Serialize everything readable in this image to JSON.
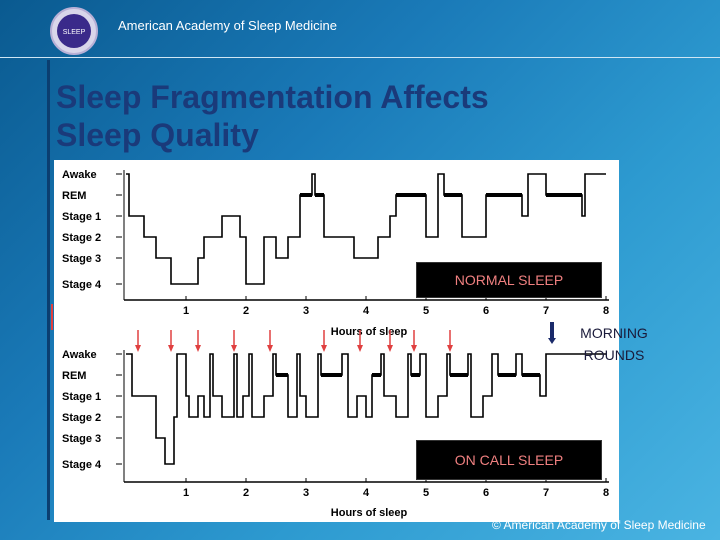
{
  "header": {
    "org_name": "American Academy of Sleep Medicine",
    "logo_text": "SLEEP"
  },
  "slide": {
    "title_line1": "Sleep Fragmentation Affects",
    "title_line2": "Sleep Quality"
  },
  "chart_data": [
    {
      "type": "line",
      "name": "NORMAL SLEEP",
      "stages": [
        "Awake",
        "REM",
        "Stage 1",
        "Stage 2",
        "Stage 3",
        "Stage 4"
      ],
      "x": [
        1,
        2,
        3,
        4,
        5,
        6,
        7,
        8
      ],
      "xlabel": "Hours of sleep",
      "xlim": [
        0,
        8
      ],
      "label": "NORMAL SLEEP",
      "hypnogram": [
        [
          0,
          "Awake"
        ],
        [
          0.05,
          "Stage 1"
        ],
        [
          0.3,
          "Stage 2"
        ],
        [
          0.5,
          "Stage 3"
        ],
        [
          0.75,
          "Stage 4"
        ],
        [
          1.2,
          "Stage 3"
        ],
        [
          1.3,
          "Stage 2"
        ],
        [
          1.6,
          "Stage 1"
        ],
        [
          1.9,
          "Stage 2"
        ],
        [
          2.0,
          "Stage 4"
        ],
        [
          2.3,
          "Stage 2"
        ],
        [
          2.5,
          "Stage 3"
        ],
        [
          2.7,
          "Stage 2"
        ],
        [
          2.9,
          "REM"
        ],
        [
          3.1,
          "Awake"
        ],
        [
          3.15,
          "REM"
        ],
        [
          3.3,
          "Stage 2"
        ],
        [
          3.8,
          "Stage 3"
        ],
        [
          4.2,
          "Stage 2"
        ],
        [
          4.4,
          "Stage 1"
        ],
        [
          4.5,
          "REM"
        ],
        [
          5.0,
          "Stage 2"
        ],
        [
          5.2,
          "Awake"
        ],
        [
          5.3,
          "REM"
        ],
        [
          5.6,
          "Stage 2"
        ],
        [
          6.0,
          "REM"
        ],
        [
          6.6,
          "Stage 1"
        ],
        [
          6.7,
          "Awake"
        ],
        [
          7.0,
          "REM"
        ],
        [
          7.6,
          "Stage 1"
        ],
        [
          7.65,
          "Awake"
        ],
        [
          8.0,
          "Awake"
        ]
      ]
    },
    {
      "type": "line",
      "name": "ON CALL SLEEP",
      "stages": [
        "Awake",
        "REM",
        "Stage 1",
        "Stage 2",
        "Stage 3",
        "Stage 4"
      ],
      "x": [
        1,
        2,
        3,
        4,
        5,
        6,
        7,
        8
      ],
      "xlabel": "Hours of sleep",
      "xlim": [
        0,
        8
      ],
      "label": "ON CALL SLEEP",
      "hypnogram": [
        [
          0,
          "Awake"
        ],
        [
          0.1,
          "Stage 1"
        ],
        [
          0.5,
          "Stage 3"
        ],
        [
          0.65,
          "Stage 4"
        ],
        [
          0.8,
          "Stage 2"
        ],
        [
          0.85,
          "Awake"
        ],
        [
          1.0,
          "Stage 1"
        ],
        [
          1.05,
          "Stage 2"
        ],
        [
          1.2,
          "Stage 1"
        ],
        [
          1.3,
          "Stage 2"
        ],
        [
          1.4,
          "Awake"
        ],
        [
          1.45,
          "Stage 1"
        ],
        [
          1.6,
          "Stage 2"
        ],
        [
          1.8,
          "Awake"
        ],
        [
          1.85,
          "Stage 2"
        ],
        [
          1.95,
          "Stage 1"
        ],
        [
          2.05,
          "Awake"
        ],
        [
          2.1,
          "Stage 2"
        ],
        [
          2.3,
          "Stage 1"
        ],
        [
          2.45,
          "Awake"
        ],
        [
          2.5,
          "REM"
        ],
        [
          2.7,
          "Stage 2"
        ],
        [
          2.85,
          "Awake"
        ],
        [
          2.9,
          "Stage 1"
        ],
        [
          3.0,
          "Stage 2"
        ],
        [
          3.2,
          "Awake"
        ],
        [
          3.25,
          "REM"
        ],
        [
          3.6,
          "Awake"
        ],
        [
          3.7,
          "Stage 2"
        ],
        [
          3.85,
          "Stage 1"
        ],
        [
          4.0,
          "Stage 2"
        ],
        [
          4.1,
          "REM"
        ],
        [
          4.25,
          "Awake"
        ],
        [
          4.3,
          "Stage 1"
        ],
        [
          4.5,
          "Stage 2"
        ],
        [
          4.7,
          "Awake"
        ],
        [
          4.75,
          "REM"
        ],
        [
          4.9,
          "Awake"
        ],
        [
          5.0,
          "Stage 2"
        ],
        [
          5.2,
          "Stage 1"
        ],
        [
          5.35,
          "Awake"
        ],
        [
          5.4,
          "REM"
        ],
        [
          5.7,
          "Awake"
        ],
        [
          5.75,
          "Stage 2"
        ],
        [
          5.95,
          "Stage 1"
        ],
        [
          6.1,
          "Awake"
        ],
        [
          6.2,
          "REM"
        ],
        [
          6.5,
          "Awake"
        ],
        [
          6.6,
          "REM"
        ],
        [
          6.9,
          "Stage 1"
        ],
        [
          7.0,
          "Awake"
        ],
        [
          7.6,
          "Awake"
        ],
        [
          8.0,
          "Awake"
        ]
      ],
      "arrows_x": [
        0.2,
        0.75,
        1.2,
        1.8,
        2.4,
        3.3,
        3.9,
        4.4,
        4.8,
        5.4
      ]
    }
  ],
  "labels": {
    "normal_sleep": "NORMAL SLEEP",
    "on_call_sleep": "ON CALL SLEEP",
    "morning_rounds_line1": "MORNING",
    "morning_rounds_line2": "ROUNDS"
  },
  "footer": {
    "copyright": "© American Academy of Sleep Medicine"
  },
  "colors": {
    "title": "#1a3a7a",
    "arrow": "#e04040",
    "box_text": "#f08080"
  }
}
